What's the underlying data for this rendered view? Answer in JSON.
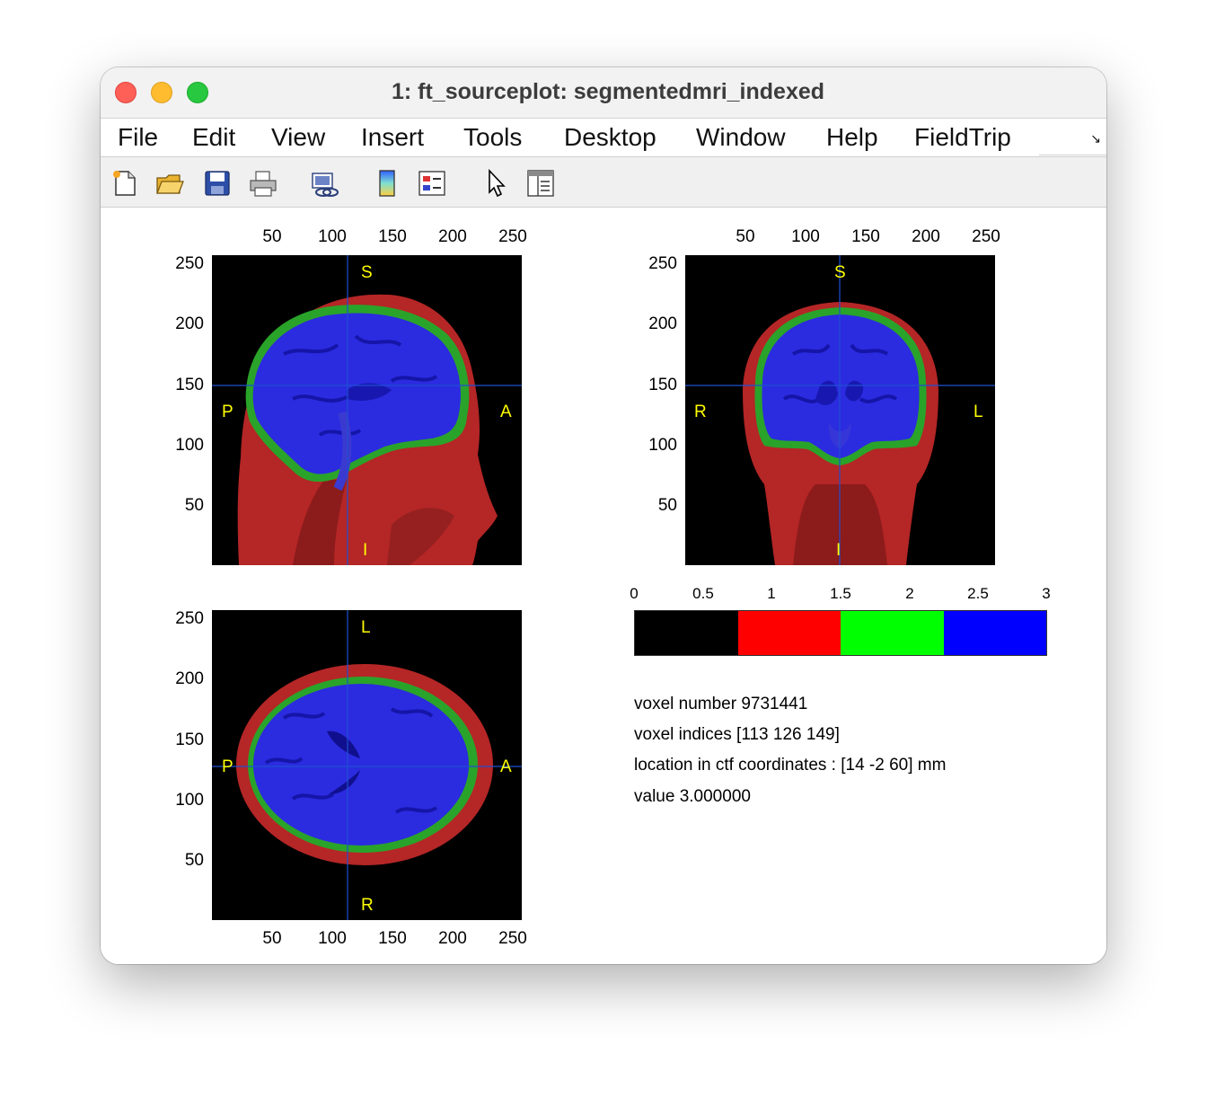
{
  "window": {
    "title": "1: ft_sourceplot: segmentedmri_indexed"
  },
  "menubar": {
    "items": [
      "File",
      "Edit",
      "View",
      "Insert",
      "Tools",
      "Desktop",
      "Window",
      "Help",
      "FieldTrip"
    ]
  },
  "toolbar": {
    "buttons": [
      {
        "icon": "new-file-icon"
      },
      {
        "icon": "open-folder-icon"
      },
      {
        "icon": "save-icon"
      },
      {
        "icon": "print-icon"
      },
      {
        "icon": "link-plot-icon"
      },
      {
        "icon": "insert-colorbar-icon"
      },
      {
        "icon": "insert-legend-icon"
      },
      {
        "icon": "pointer-icon"
      },
      {
        "icon": "property-inspector-icon"
      }
    ]
  },
  "colors": {
    "background_label": "#000000",
    "csf_label": "#ff0000",
    "gray_label": "#00ff00",
    "white_label": "#0000ff",
    "orientation_text": "#ffff00",
    "crosshair": "#1f4fd1"
  },
  "axes": {
    "x_ticks": [
      "50",
      "100",
      "150",
      "200",
      "250"
    ],
    "y_ticks": [
      "250",
      "200",
      "150",
      "100",
      "50"
    ]
  },
  "views": {
    "sagittal": {
      "top": "S",
      "bottom": "I",
      "left": "P",
      "right": "A"
    },
    "coronal": {
      "top": "S",
      "bottom": "I",
      "left": "R",
      "right": "L"
    },
    "axial": {
      "top": "L",
      "bottom": "R",
      "left": "P",
      "right": "A"
    }
  },
  "colorbar": {
    "ticks": [
      "0",
      "0.5",
      "1",
      "1.5",
      "2",
      "2.5",
      "3"
    ],
    "range": [
      0,
      3
    ],
    "segments": [
      "#000000",
      "#ff0000",
      "#00ff00",
      "#0000ff"
    ]
  },
  "info": {
    "voxel_number": "voxel number 9731441",
    "voxel_indices": "voxel indices [113 126 149]",
    "location": "location in ctf coordinates : [14 -2 60] mm",
    "value": "value 3.000000"
  }
}
